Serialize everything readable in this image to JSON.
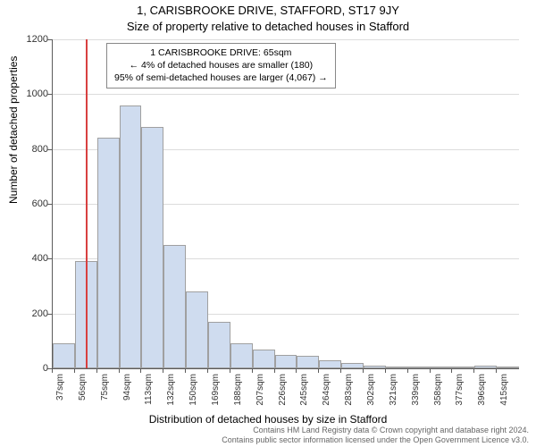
{
  "title_line1": "1, CARISBROOKE DRIVE, STAFFORD, ST17 9JY",
  "title_line2": "Size of property relative to detached houses in Stafford",
  "y_axis_label": "Number of detached properties",
  "x_axis_label": "Distribution of detached houses by size in Stafford",
  "footer_line1": "Contains HM Land Registry data © Crown copyright and database right 2024.",
  "footer_line2": "Contains public sector information licensed under the Open Government Licence v3.0.",
  "chart": {
    "type": "histogram",
    "ylim": [
      0,
      1200
    ],
    "ytick_step": 200,
    "yticks": [
      0,
      200,
      400,
      600,
      800,
      1000,
      1200
    ],
    "x_labels": [
      "37sqm",
      "56sqm",
      "75sqm",
      "94sqm",
      "113sqm",
      "132sqm",
      "150sqm",
      "169sqm",
      "188sqm",
      "207sqm",
      "226sqm",
      "245sqm",
      "264sqm",
      "283sqm",
      "302sqm",
      "321sqm",
      "339sqm",
      "358sqm",
      "377sqm",
      "396sqm",
      "415sqm"
    ],
    "bar_values": [
      90,
      390,
      840,
      960,
      880,
      450,
      280,
      170,
      90,
      70,
      50,
      45,
      30,
      18,
      10,
      8,
      8,
      6,
      6,
      10,
      5
    ],
    "bar_fill": "#cfdcef",
    "bar_border": "#a0a0a0",
    "bar_width_rel": 1.0,
    "background_color": "#ffffff",
    "grid_color": "#dcdcdc",
    "axis_color": "#5b5b5b",
    "text_color": "#333333",
    "marker_x_index": 1.47,
    "marker_color": "#d84040",
    "annotation": {
      "line1": "1 CARISBROOKE DRIVE: 65sqm",
      "line2": "← 4% of detached houses are smaller (180)",
      "line3": "95% of semi-detached houses are larger (4,067) →"
    },
    "title_fontsize": 13,
    "axis_label_fontsize": 12,
    "tick_fontsize": 11,
    "annotation_fontsize": 10.5,
    "footer_fontsize": 9
  }
}
